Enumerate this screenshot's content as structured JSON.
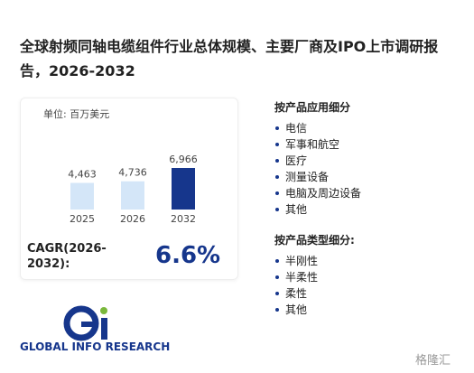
{
  "header": {
    "title": "全球射频同轴电缆组件行业总体规模、主要厂商及IPO上市调研报告，2026-2032"
  },
  "chart_data": {
    "type": "bar",
    "unit": "单位: 百万美元",
    "categories": [
      "2025",
      "2026",
      "2032"
    ],
    "values": [
      4463,
      4736,
      6966
    ],
    "value_labels": [
      "4,463",
      "4,736",
      "6,966"
    ],
    "colors": [
      "#d4e6f8",
      "#d4e6f8",
      "#16368c"
    ]
  },
  "cagr": {
    "label": "CAGR(2026-2032):",
    "value": "6.6%"
  },
  "segments": [
    {
      "title": "按产品应用细分",
      "items": [
        "电信",
        "军事和航空",
        "医疗",
        "测量设备",
        "电脑及周边设备",
        "其他"
      ]
    },
    {
      "title": "按产品类型细分:",
      "items": [
        "半刚性",
        "半柔性",
        "柔性",
        "其他"
      ]
    }
  ],
  "logo": {
    "text": "GLOBAL INFO RESEARCH"
  },
  "footer": {
    "source": "格隆汇"
  }
}
